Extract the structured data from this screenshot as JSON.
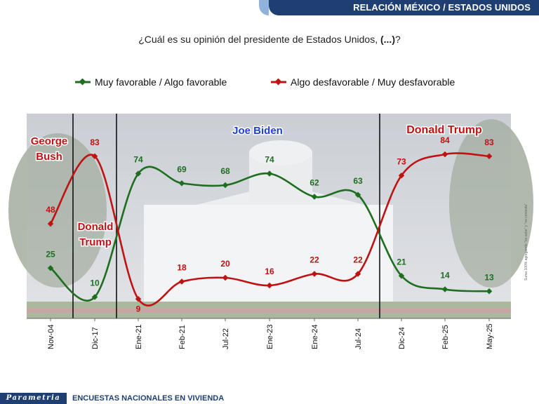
{
  "header": {
    "title": "RELACIÓN MÉXICO / ESTADOS UNIDOS"
  },
  "question": {
    "text": "¿Cuál es su opinión del presidente de Estados Unidos, ",
    "bold": "(...)",
    "end": "?"
  },
  "footer": {
    "brand": "Parametria",
    "text": "ENCUESTAS NACIONALES EN VIVIENDA"
  },
  "side_note": "Suma 100% agregando \"no sabe\" y \"no contesta\"",
  "colors": {
    "favorable": "#1d6e1f",
    "unfavorable": "#c01212",
    "header": "#1f3f73",
    "president_label": "#c01212",
    "biden_label": "#1e3fd0"
  },
  "chart_data": {
    "type": "line",
    "categories": [
      "Nov-04",
      "Dic-17",
      "Ene-21",
      "Feb-21",
      "Jul-22",
      "Ene-23",
      "Ene-24",
      "Jul-24",
      "Dic-24",
      "Feb-25",
      "May-25"
    ],
    "series": [
      {
        "name": "Muy favorable / Algo favorable",
        "values": [
          25,
          10,
          74,
          69,
          68,
          74,
          62,
          63,
          21,
          14,
          13
        ]
      },
      {
        "name": "Algo desfavorable / Muy desfavorable",
        "values": [
          48,
          83,
          9,
          18,
          20,
          16,
          22,
          22,
          73,
          84,
          83
        ]
      }
    ],
    "periods": [
      {
        "label": "George Bush",
        "lines": [
          "George",
          "Bush"
        ]
      },
      {
        "label": "Donald Trump",
        "lines": [
          "Donald",
          "Trump"
        ]
      },
      {
        "label": "Joe Biden",
        "lines": [
          "Joe Biden"
        ]
      },
      {
        "label": "Donald Trump",
        "lines": [
          "Donald Trump"
        ]
      }
    ],
    "ylim": [
      0,
      100
    ],
    "legend": "top",
    "grid": false
  }
}
